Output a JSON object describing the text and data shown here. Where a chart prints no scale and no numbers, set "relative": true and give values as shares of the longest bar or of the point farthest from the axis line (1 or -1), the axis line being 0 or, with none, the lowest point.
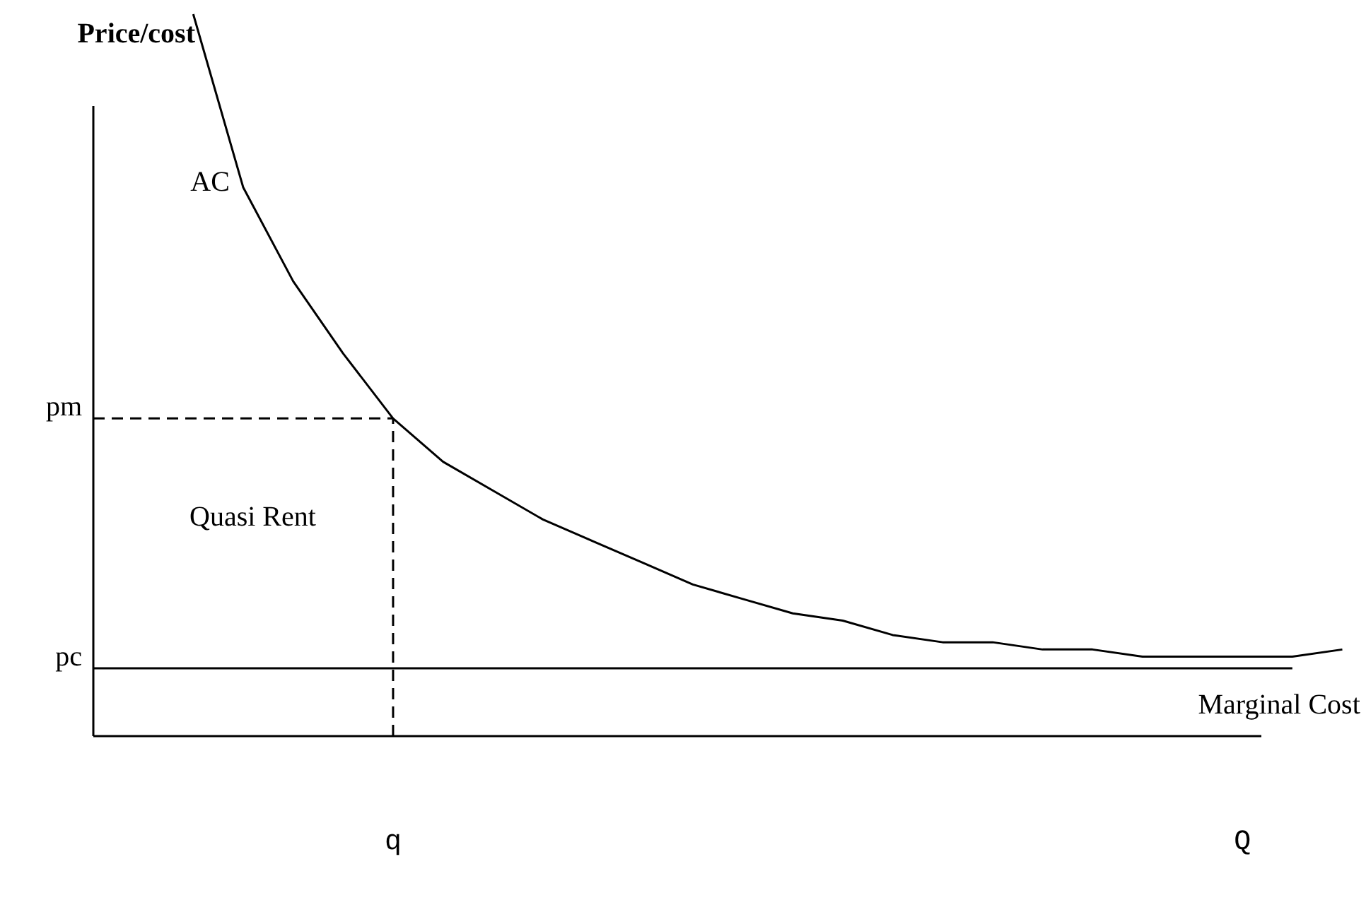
{
  "chart_data": {
    "type": "line",
    "relative": true,
    "ylabel": "Price/cost",
    "categories": [
      null,
      null,
      null,
      null,
      null,
      null,
      "q",
      null,
      null,
      null,
      null,
      null,
      null,
      null,
      null,
      null,
      null,
      null,
      null,
      null,
      null,
      null,
      null,
      "Q",
      null,
      null
    ],
    "series": [
      {
        "name": "AC",
        "color": "#000000",
        "values": [
          null,
          null,
          1,
          0.76,
          0.63,
          0.53,
          0.44,
          0.38,
          0.34,
          0.3,
          0.27,
          0.24,
          0.21,
          0.19,
          0.17,
          0.16,
          0.14,
          0.13,
          0.13,
          0.12,
          0.12,
          0.11,
          0.11,
          0.11,
          0.11,
          0.12
        ]
      },
      {
        "name": "Marginal Cost",
        "color": "#000000",
        "values": [
          0.094,
          0.094,
          0.094,
          0.094,
          0.094,
          0.094,
          0.094,
          0.094,
          0.094,
          0.094,
          0.094,
          0.094,
          0.094,
          0.094,
          0.094,
          0.094,
          0.094,
          0.094,
          0.094,
          0.094,
          0.094,
          0.094,
          0.094,
          0.094,
          0.094,
          null
        ]
      }
    ],
    "ref_lines": [
      {
        "axis": "y",
        "value": 0.44,
        "label": "pm",
        "line_style": "dashed",
        "color": "#000000"
      },
      {
        "axis": "x",
        "value": "q",
        "line_style": "dashed",
        "color": "#000000"
      }
    ],
    "annotations": [
      "pc",
      "Quasi Rent"
    ]
  }
}
